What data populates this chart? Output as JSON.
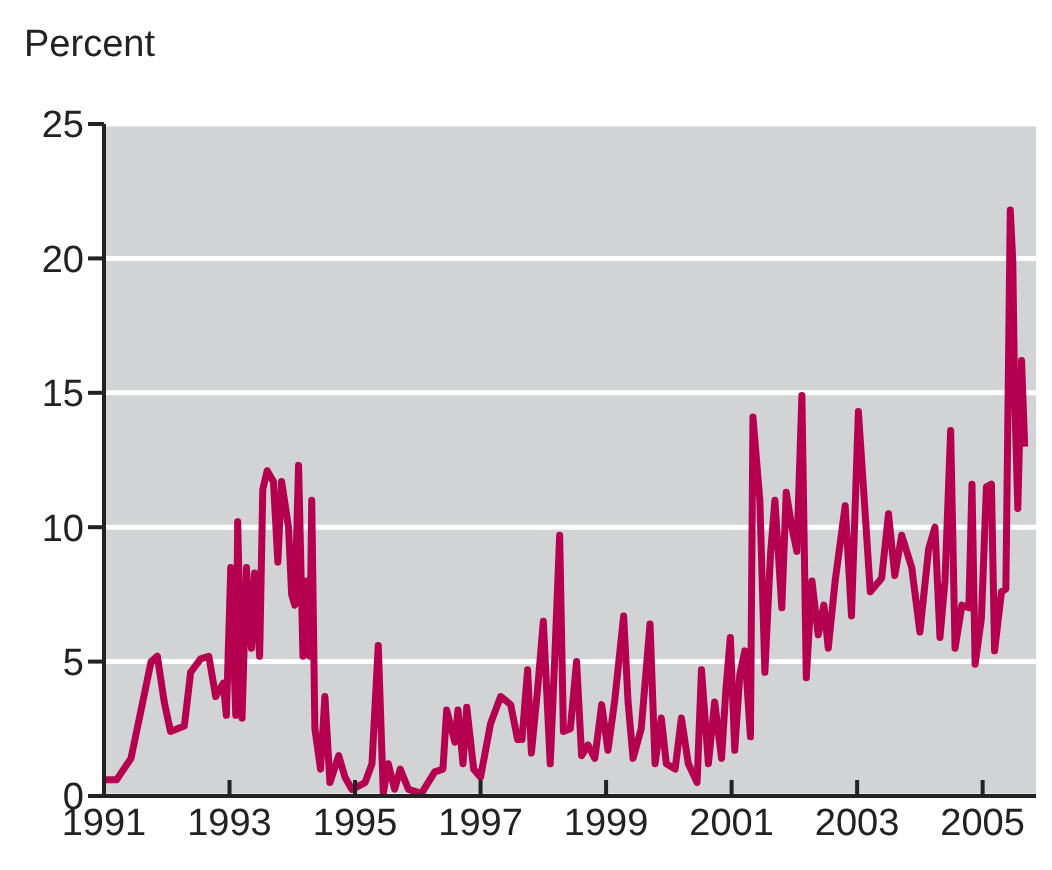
{
  "chart_data": {
    "type": "line",
    "ylabel": "Percent",
    "x": [
      1991.0,
      1991.2,
      1991.43,
      1991.6,
      1991.75,
      1991.85,
      1991.96,
      1992.06,
      1992.17,
      1992.28,
      1992.38,
      1992.54,
      1992.67,
      1992.78,
      1992.9,
      1992.95,
      1993.02,
      1993.1,
      1993.13,
      1993.2,
      1993.27,
      1993.35,
      1993.4,
      1993.48,
      1993.53,
      1993.6,
      1993.7,
      1993.77,
      1993.83,
      1993.94,
      1993.99,
      1994.04,
      1994.1,
      1994.17,
      1994.23,
      1994.28,
      1994.31,
      1994.36,
      1994.45,
      1994.52,
      1994.6,
      1994.74,
      1994.84,
      1994.95,
      1995.16,
      1995.27,
      1995.37,
      1995.45,
      1995.53,
      1995.63,
      1995.72,
      1995.85,
      1996.06,
      1996.27,
      1996.4,
      1996.46,
      1996.59,
      1996.64,
      1996.72,
      1996.78,
      1996.89,
      1997.0,
      1997.16,
      1997.32,
      1997.48,
      1997.59,
      1997.66,
      1997.75,
      1997.81,
      1997.91,
      1998.0,
      1998.11,
      1998.18,
      1998.26,
      1998.32,
      1998.43,
      1998.53,
      1998.61,
      1998.71,
      1998.82,
      1998.93,
      1999.03,
      1999.14,
      1999.28,
      1999.35,
      1999.43,
      1999.56,
      1999.7,
      1999.78,
      1999.88,
      1999.96,
      2000.1,
      2000.2,
      2000.31,
      2000.45,
      2000.52,
      2000.63,
      2000.73,
      2000.84,
      2000.91,
      2000.98,
      2001.05,
      2001.13,
      2001.21,
      2001.3,
      2001.34,
      2001.45,
      2001.53,
      2001.62,
      2001.69,
      2001.8,
      2001.87,
      2001.96,
      2002.04,
      2002.12,
      2002.19,
      2002.28,
      2002.38,
      2002.47,
      2002.54,
      2002.65,
      2002.81,
      2002.91,
      2003.02,
      2003.1,
      2003.21,
      2003.39,
      2003.5,
      2003.6,
      2003.71,
      2003.87,
      2004.0,
      2004.14,
      2004.24,
      2004.32,
      2004.4,
      2004.49,
      2004.56,
      2004.67,
      2004.78,
      2004.83,
      2004.88,
      2004.98,
      2005.06,
      2005.14,
      2005.19,
      2005.3,
      2005.37,
      2005.44,
      2005.48,
      2005.51,
      2005.56,
      2005.62,
      2005.67
    ],
    "series": [
      {
        "color": "#b5004f",
        "values": [
          0.6,
          0.6,
          1.4,
          3.3,
          5.0,
          5.2,
          3.5,
          2.4,
          2.5,
          2.6,
          4.6,
          5.1,
          5.2,
          3.7,
          4.2,
          3.0,
          8.5,
          3.0,
          10.2,
          2.9,
          8.5,
          5.5,
          8.3,
          5.2,
          11.4,
          12.1,
          11.7,
          8.7,
          11.7,
          10.0,
          7.5,
          7.1,
          12.3,
          5.2,
          8.0,
          5.2,
          11.0,
          2.5,
          1.0,
          3.7,
          0.5,
          1.5,
          0.7,
          0.25,
          0.5,
          1.2,
          5.6,
          0.1,
          1.2,
          0.25,
          1.0,
          0.25,
          0.1,
          0.9,
          1.0,
          3.2,
          2.0,
          3.2,
          1.2,
          3.3,
          1.0,
          0.7,
          2.7,
          3.7,
          3.4,
          2.1,
          2.1,
          4.7,
          1.6,
          4.0,
          6.5,
          1.2,
          5.0,
          9.7,
          2.4,
          2.5,
          5.0,
          1.5,
          1.9,
          1.4,
          3.4,
          1.7,
          3.6,
          6.7,
          3.5,
          1.4,
          2.5,
          6.4,
          1.2,
          2.9,
          1.2,
          1.0,
          2.9,
          1.2,
          0.5,
          4.7,
          1.2,
          3.5,
          1.4,
          4.0,
          5.9,
          1.7,
          4.5,
          5.4,
          2.2,
          14.1,
          11.0,
          4.6,
          9.0,
          11.0,
          7.0,
          11.3,
          10.0,
          9.1,
          14.9,
          4.4,
          8.0,
          6.0,
          7.1,
          5.5,
          8.0,
          10.8,
          6.7,
          14.3,
          11.5,
          7.6,
          8.1,
          10.5,
          8.2,
          9.7,
          8.5,
          6.1,
          9.2,
          10.0,
          5.9,
          8.0,
          13.6,
          5.5,
          7.1,
          7.0,
          11.6,
          4.9,
          6.6,
          11.5,
          11.6,
          5.4,
          7.6,
          7.7,
          21.8,
          19.9,
          14.9,
          10.7,
          16.2,
          13.0
        ]
      }
    ],
    "xlim": [
      1991,
      2005.85
    ],
    "xticks": [
      1991,
      1993,
      1995,
      1997,
      1999,
      2001,
      2003,
      2005
    ],
    "ylim": [
      0,
      25
    ],
    "yticks": [
      0,
      5,
      10,
      15,
      20,
      25
    ],
    "grid": "y",
    "marker": "none",
    "line_style": "solid"
  }
}
